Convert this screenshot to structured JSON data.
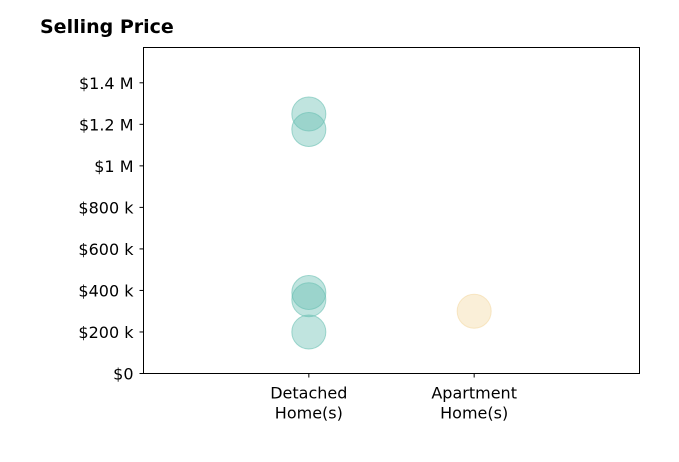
{
  "chart_data": {
    "type": "scatter",
    "title": "Selling Price",
    "xlabel": "",
    "ylabel": "",
    "categories": [
      [
        "Detached",
        "Home(s)"
      ],
      [
        "Apartment",
        "Home(s)"
      ]
    ],
    "x_range": [
      -1,
      2
    ],
    "ylim": [
      0,
      1570000
    ],
    "y_ticks": [
      {
        "value": 0,
        "label": "$0"
      },
      {
        "value": 200000,
        "label": "$200 k"
      },
      {
        "value": 400000,
        "label": "$400 k"
      },
      {
        "value": 600000,
        "label": "$600 k"
      },
      {
        "value": 800000,
        "label": "$800 k"
      },
      {
        "value": 1000000,
        "label": "$1 M"
      },
      {
        "value": 1200000,
        "label": "$1.2 M"
      },
      {
        "value": 1400000,
        "label": "$1.4 M"
      }
    ],
    "points": [
      {
        "category": 0,
        "value": 1250000
      },
      {
        "category": 0,
        "value": 1175000
      },
      {
        "category": 0,
        "value": 390000
      },
      {
        "category": 0,
        "value": 355000
      },
      {
        "category": 0,
        "value": 200000
      },
      {
        "category": 1,
        "value": 300000
      }
    ],
    "colors": [
      "#69bfb3",
      "#f4d9a3"
    ],
    "grid": false
  }
}
